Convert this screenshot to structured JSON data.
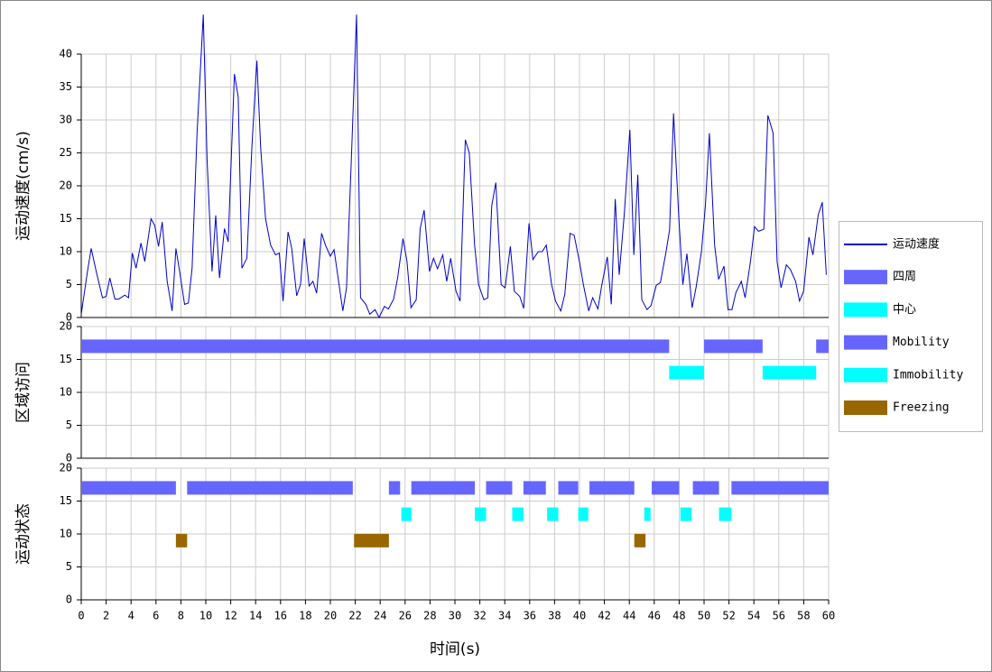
{
  "chart_data": [
    {
      "type": "line",
      "ylabel": "运动速度(cm/s)",
      "xlim": [
        0,
        60
      ],
      "xticks": [
        0,
        2,
        4,
        6,
        8,
        10,
        12,
        14,
        16,
        18,
        20,
        22,
        24,
        26,
        28,
        30,
        32,
        34,
        36,
        38,
        40,
        42,
        44,
        46,
        48,
        50,
        52,
        54,
        56,
        58,
        60
      ],
      "ylim": [
        0,
        40
      ],
      "yticks": [
        0,
        5,
        10,
        15,
        20,
        25,
        30,
        35,
        40
      ],
      "grid": true,
      "series": [
        {
          "name": "运动速度",
          "color": "#0000cc",
          "x": [
            0,
            0.5,
            0.8,
            1.2,
            1.7,
            2,
            2.3,
            2.7,
            3,
            3.5,
            3.8,
            4.1,
            4.4,
            4.8,
            5.1,
            5.6,
            5.9,
            6.2,
            6.5,
            6.9,
            7.3,
            7.6,
            7.9,
            8.3,
            8.6,
            8.9,
            9.3,
            9.8,
            10.1,
            10.5,
            10.8,
            11.1,
            11.5,
            11.8,
            12.3,
            12.6,
            12.9,
            13.3,
            13.7,
            14.1,
            14.4,
            14.8,
            15.2,
            15.6,
            15.9,
            16.2,
            16.6,
            16.9,
            17.3,
            17.6,
            17.9,
            18.3,
            18.6,
            18.9,
            19.3,
            19.6,
            20,
            20.3,
            21,
            21.3,
            21.7,
            22.1,
            22.42,
            22.85,
            23.17,
            23.59,
            23.91,
            24.34,
            24.66,
            25.08,
            25.4,
            25.83,
            26.15,
            26.47,
            26.89,
            27.21,
            27.53,
            27.96,
            28.28,
            28.6,
            29.02,
            29.34,
            29.66,
            30.09,
            30.41,
            30.83,
            31.15,
            31.58,
            31.9,
            32.32,
            32.64,
            32.96,
            33.28,
            33.71,
            34.03,
            34.45,
            34.77,
            35.2,
            35.52,
            35.95,
            36.26,
            36.69,
            37.01,
            37.33,
            37.76,
            38.08,
            38.5,
            38.82,
            39.25,
            39.57,
            39.99,
            40.31,
            40.74,
            41.06,
            41.48,
            41.8,
            42.23,
            42.55,
            42.87,
            43.19,
            43.61,
            44.04,
            44.36,
            44.68,
            45,
            45.42,
            45.74,
            46.17,
            46.49,
            46.91,
            47.23,
            47.55,
            47.98,
            48.3,
            48.62,
            49.04,
            49.36,
            49.79,
            50.11,
            50.43,
            50.85,
            51.17,
            51.6,
            51.92,
            52.24,
            52.56,
            52.99,
            53.3,
            53.73,
            54.05,
            54.37,
            54.8,
            55.12,
            55.54,
            55.86,
            56.18,
            56.61,
            56.93,
            57.35,
            57.67,
            57.99,
            58.42,
            58.74,
            59.17,
            59.49,
            59.81
          ],
          "values": [
            0.5,
            7,
            10.5,
            7,
            3,
            3.2,
            6,
            2.8,
            2.8,
            3.4,
            3,
            9.8,
            7.5,
            11.3,
            8.5,
            15,
            14,
            10.8,
            14.5,
            5.5,
            1,
            10.5,
            7,
            2,
            2.2,
            7.5,
            28,
            46,
            24,
            7,
            15.5,
            6,
            13.5,
            11.5,
            37,
            33.5,
            7.5,
            9,
            26,
            39,
            26,
            15,
            11,
            9.5,
            9.8,
            2.5,
            13,
            10.5,
            3.3,
            5,
            12,
            4.8,
            5.5,
            3.7,
            12.8,
            11,
            9.3,
            10.3,
            1,
            4.5,
            25,
            46,
            3,
            2,
            0.5,
            1.2,
            0,
            1.7,
            1.3,
            2.8,
            6,
            12,
            8.5,
            1.5,
            2.7,
            13.5,
            16.3,
            7,
            9,
            7.4,
            9.5,
            5.5,
            9,
            4,
            2.5,
            27,
            25,
            11,
            5,
            2.7,
            3,
            17,
            20.5,
            5,
            4.5,
            10.8,
            4,
            3.2,
            1.4,
            14.3,
            8.8,
            10,
            10,
            11,
            5,
            2.5,
            1,
            3.5,
            12.8,
            12.5,
            8.5,
            5,
            1,
            3,
            1.3,
            5,
            9.2,
            2,
            18,
            6.5,
            16,
            28.5,
            9.5,
            21.7,
            2.7,
            1.2,
            1.8,
            4.9,
            5.3,
            9.6,
            13.3,
            31,
            15,
            5,
            9.7,
            1.5,
            4.6,
            10,
            17,
            28,
            11,
            5.8,
            7.8,
            1.2,
            1.2,
            3.8,
            5.5,
            3,
            8.6,
            13.8,
            13.1,
            13.4,
            30.7,
            28,
            8.5,
            4.5,
            8,
            7.3,
            5.5,
            2.5,
            4,
            12.2,
            9.5,
            15.6,
            17.5,
            6.5
          ]
        }
      ]
    },
    {
      "type": "interval",
      "ylabel": "区域访问",
      "xlim": [
        0,
        60
      ],
      "xticks": [
        0,
        2,
        4,
        6,
        8,
        10,
        12,
        14,
        16,
        18,
        20,
        22,
        24,
        26,
        28,
        30,
        32,
        34,
        36,
        38,
        40,
        42,
        44,
        46,
        48,
        50,
        52,
        54,
        56,
        58,
        60
      ],
      "ylim": [
        0,
        20
      ],
      "yticks": [
        0,
        5,
        10,
        15,
        20
      ],
      "grid": true,
      "series": [
        {
          "name": "四周",
          "color": "#6666ff",
          "level": 17,
          "intervals": [
            [
              0,
              47.2
            ],
            [
              50,
              54.7
            ],
            [
              59,
              60
            ]
          ]
        },
        {
          "name": "中心",
          "color": "#00ffff",
          "level": 13,
          "intervals": [
            [
              47.2,
              50
            ],
            [
              54.7,
              59
            ]
          ]
        }
      ]
    },
    {
      "type": "interval",
      "ylabel": "运动状态",
      "xlabel": "时间(s)",
      "xlim": [
        0,
        60
      ],
      "xticks": [
        0,
        2,
        4,
        6,
        8,
        10,
        12,
        14,
        16,
        18,
        20,
        22,
        24,
        26,
        28,
        30,
        32,
        34,
        36,
        38,
        40,
        42,
        44,
        46,
        48,
        50,
        52,
        54,
        56,
        58,
        60
      ],
      "ylim": [
        0,
        20
      ],
      "yticks": [
        0,
        5,
        10,
        15,
        20
      ],
      "grid": true,
      "series": [
        {
          "name": "Mobility",
          "color": "#6666ff",
          "level": 17,
          "intervals": [
            [
              0,
              7.6
            ],
            [
              8.5,
              21.8
            ],
            [
              24.7,
              25.6
            ],
            [
              26.5,
              31.6
            ],
            [
              32.5,
              34.6
            ],
            [
              35.5,
              37.3
            ],
            [
              38.3,
              39.9
            ],
            [
              40.8,
              44.4
            ],
            [
              45.8,
              48
            ],
            [
              49.1,
              51.2
            ],
            [
              52.2,
              60
            ]
          ]
        },
        {
          "name": "Immobility",
          "color": "#00ffff",
          "level": 13,
          "intervals": [
            [
              25.7,
              26.5
            ],
            [
              31.6,
              32.5
            ],
            [
              34.6,
              35.5
            ],
            [
              37.4,
              38.3
            ],
            [
              39.9,
              40.7
            ],
            [
              45.2,
              45.7
            ],
            [
              48.1,
              49
            ],
            [
              51.2,
              52.2
            ]
          ]
        },
        {
          "name": "Freezing",
          "color": "#996600",
          "level": 9,
          "intervals": [
            [
              7.6,
              8.5
            ],
            [
              21.9,
              24.7
            ],
            [
              44.4,
              45.3
            ]
          ]
        }
      ]
    }
  ]
}
